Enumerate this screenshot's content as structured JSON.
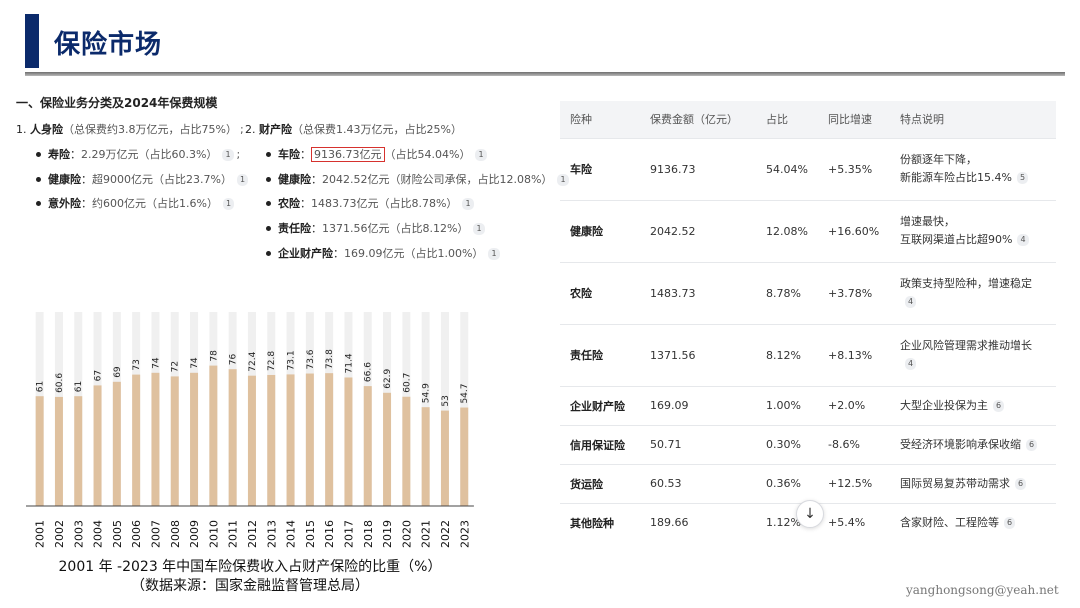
{
  "header": {
    "title": "保险市场"
  },
  "section": {
    "heading": "一、保险业务分类及2024年保费规模",
    "life": {
      "index": "1.",
      "name": "人身险",
      "note": "（总保费约3.8万亿元，占比75%）",
      "sep": ";"
    },
    "property": {
      "index": "2.",
      "name": "财产险",
      "note": "（总保费1.43万亿元，占比25%）"
    },
    "life_items": [
      {
        "name": "寿险",
        "colon": "：",
        "value": "2.29万亿元（占比60.3%）",
        "ref": "1",
        "sep": ";"
      },
      {
        "name": "健康险",
        "colon": "：",
        "value": "超9000亿元（占比23.7%）",
        "ref": "1"
      },
      {
        "name": "意外险",
        "colon": "：",
        "value": "约600亿元（占比1.6%）",
        "ref": "1"
      }
    ],
    "property_items": [
      {
        "name": "车险",
        "colon": "：",
        "value": "9136.73亿元",
        "extra": "（占比54.04%）",
        "ref": "1"
      },
      {
        "name": "健康险",
        "colon": "：",
        "value": "2042.52亿元（财险公司承保，占比12.08%）",
        "ref": "1"
      },
      {
        "name": "农险",
        "colon": "：",
        "value": "1483.73亿元（占比8.78%）",
        "ref": "1"
      },
      {
        "name": "责任险",
        "colon": "：",
        "value": "1371.56亿元（占比8.12%）",
        "ref": "1"
      },
      {
        "name": "企业财产险",
        "colon": "：",
        "value": "169.09亿元（占比1.00%）",
        "ref": "1"
      }
    ]
  },
  "chart_data": {
    "type": "bar",
    "categories": [
      "2001",
      "2002",
      "2003",
      "2004",
      "2005",
      "2006",
      "2007",
      "2008",
      "2009",
      "2010",
      "2011",
      "2012",
      "2013",
      "2014",
      "2015",
      "2016",
      "2017",
      "2018",
      "2019",
      "2020",
      "2021",
      "2022",
      "2023"
    ],
    "values": [
      61,
      60.6,
      61,
      67,
      69,
      73,
      74,
      72,
      74,
      78,
      76,
      72.4,
      72.8,
      73.1,
      73.6,
      73.8,
      71.4,
      66.6,
      62.9,
      60.7,
      54.9,
      53,
      54.7
    ],
    "value_labels": [
      "61",
      "60.6",
      "61",
      "67",
      "69",
      "73",
      "74",
      "72",
      "74",
      "78",
      "76",
      "72.4",
      "72.8",
      "73.1",
      "73.6",
      "73.8",
      "71.4",
      "66.6",
      "62.9",
      "60.7",
      "54.9",
      "53",
      "54.7"
    ],
    "title": "",
    "xlabel": "",
    "ylabel": "",
    "ylim": [
      0,
      100
    ],
    "grid": false,
    "bar_color": "#dfc19f",
    "background_bar_color": "#f0f0f0",
    "caption_line1": "2001 年 -2023 年中国车险保费收入占财产保险的比重（%）",
    "caption_line2": "（数据来源：国家金融监督管理总局）"
  },
  "table": {
    "headers": [
      "险种",
      "保费金额（亿元）",
      "占比",
      "同比增速",
      "特点说明"
    ],
    "rows": [
      {
        "name": "车险",
        "amount": "9136.73",
        "share": "54.04%",
        "growth": "+5.35%",
        "feat1": "份额逐年下降，",
        "feat2": "新能源车险占比15.4%",
        "ref": "5"
      },
      {
        "name": "健康险",
        "amount": "2042.52",
        "share": "12.08%",
        "growth": "+16.60%",
        "feat1": "增速最快，",
        "feat2": "互联网渠道占比超90%",
        "ref": "4"
      },
      {
        "name": "农险",
        "amount": "1483.73",
        "share": "8.78%",
        "growth": "+3.78%",
        "feat1": "政策支持型险种，增速稳定",
        "feat2": "",
        "ref": "4"
      },
      {
        "name": "责任险",
        "amount": "1371.56",
        "share": "8.12%",
        "growth": "+8.13%",
        "feat1": "企业风险管理需求推动增长",
        "feat2": "",
        "ref": "4"
      },
      {
        "name": "企业财产险",
        "amount": "169.09",
        "share": "1.00%",
        "growth": "+2.0%",
        "feat1": "大型企业投保为主",
        "feat2": "",
        "ref": "6"
      },
      {
        "name": "信用保证险",
        "amount": "50.71",
        "share": "0.30%",
        "growth": "-8.6%",
        "feat1": "受经济环境影响承保收缩",
        "feat2": "",
        "ref": "6"
      },
      {
        "name": "货运险",
        "amount": "60.53",
        "share": "0.36%",
        "growth": "+12.5%",
        "feat1": "国际贸易复苏带动需求",
        "feat2": "",
        "ref": "6"
      },
      {
        "name": "其他险种",
        "amount": "189.66",
        "share": "1.12%",
        "growth": "+5.4%",
        "feat1": "含家财险、工程险等",
        "feat2": "",
        "ref": "6"
      }
    ]
  },
  "scroll_button": {
    "icon": "arrow-down-icon",
    "glyph": "↓"
  },
  "watermark": "yanghongsong@yeah.net"
}
